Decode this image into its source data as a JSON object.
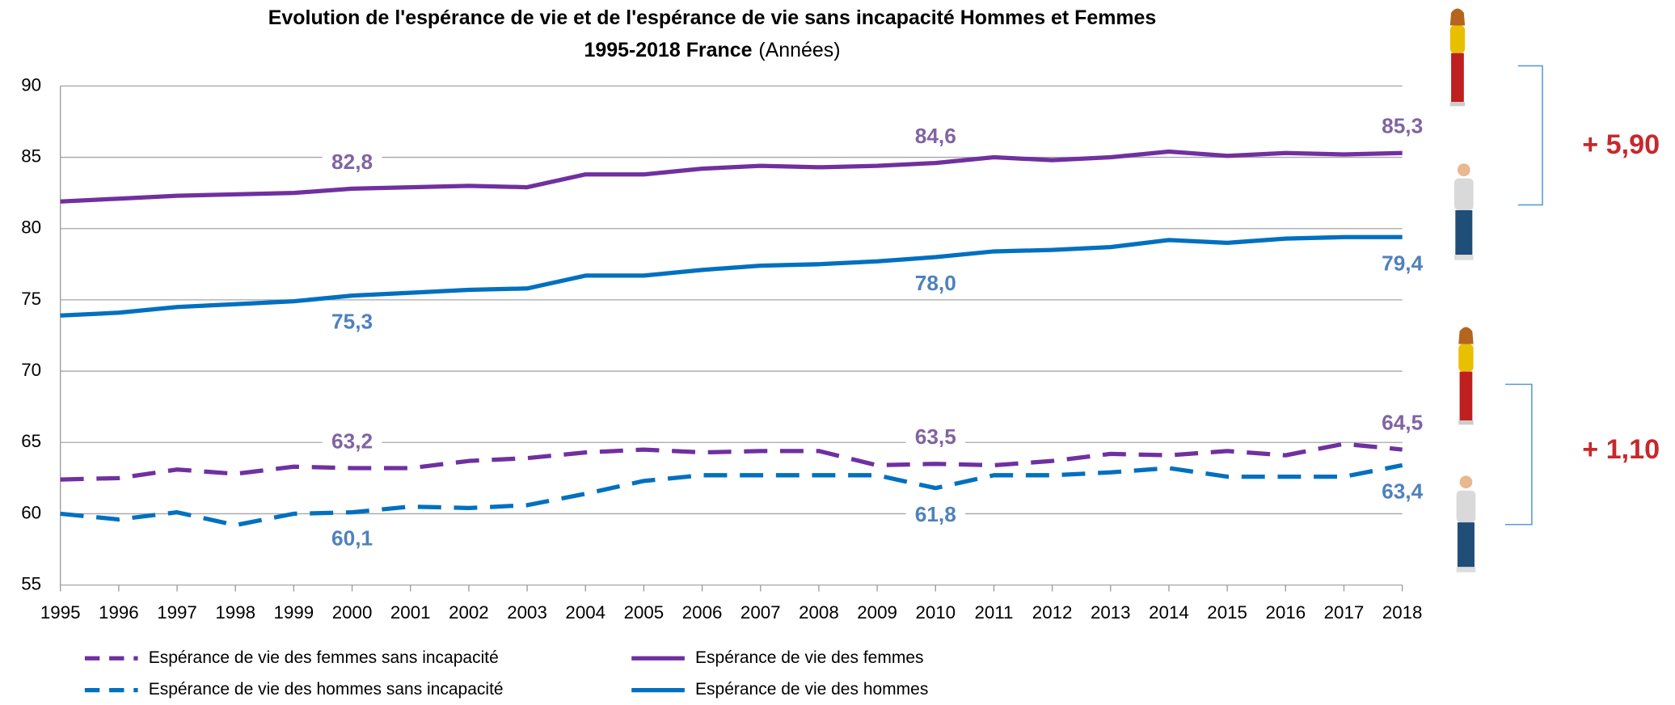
{
  "chart_data": {
    "type": "line",
    "title": "Evolution de l'espérance de vie et de l'espérance de vie sans incapacité Hommes et Femmes",
    "subtitle": "1995-2018 France",
    "unit": "(Années)",
    "categories": [
      "1995",
      "1996",
      "1997",
      "1998",
      "1999",
      "2000",
      "2001",
      "2002",
      "2003",
      "2004",
      "2005",
      "2006",
      "2007",
      "2008",
      "2009",
      "2010",
      "2011",
      "2012",
      "2013",
      "2014",
      "2015",
      "2016",
      "2017",
      "2018"
    ],
    "ylim": [
      55,
      90
    ],
    "yticks": [
      55,
      60,
      65,
      70,
      75,
      80,
      85,
      90
    ],
    "grid": true,
    "series": [
      {
        "name": "Espérance de vie des femmes sans incapacité",
        "color": "#7030a0",
        "dashed": true,
        "values": [
          62.4,
          62.5,
          63.1,
          62.8,
          63.3,
          63.2,
          63.2,
          63.7,
          63.9,
          64.3,
          64.5,
          64.3,
          64.4,
          64.4,
          63.4,
          63.5,
          63.4,
          63.7,
          64.2,
          64.1,
          64.4,
          64.1,
          64.9,
          64.5
        ],
        "value_labels": [
          null,
          null,
          null,
          null,
          null,
          "63,2",
          null,
          null,
          null,
          null,
          null,
          null,
          null,
          null,
          null,
          "63,5",
          null,
          null,
          null,
          null,
          null,
          null,
          null,
          "64,5"
        ]
      },
      {
        "name": "Espérance de vie des femmes",
        "color": "#7030a0",
        "dashed": false,
        "values": [
          81.9,
          82.1,
          82.3,
          82.4,
          82.5,
          82.8,
          82.9,
          83.0,
          82.9,
          83.8,
          83.8,
          84.2,
          84.4,
          84.3,
          84.4,
          84.6,
          85.0,
          84.8,
          85.0,
          85.4,
          85.1,
          85.3,
          85.2,
          85.3
        ],
        "value_labels": [
          null,
          null,
          null,
          null,
          null,
          "82,8",
          null,
          null,
          null,
          null,
          null,
          null,
          null,
          null,
          null,
          "84,6",
          null,
          null,
          null,
          null,
          null,
          null,
          null,
          "85,3"
        ]
      },
      {
        "name": "Espérance de vie des hommes sans incapacité",
        "color": "#0070c0",
        "dashed": true,
        "values": [
          60.0,
          59.6,
          60.1,
          59.2,
          60.0,
          60.1,
          60.5,
          60.4,
          60.6,
          61.4,
          62.3,
          62.7,
          62.7,
          62.7,
          62.7,
          61.8,
          62.7,
          62.7,
          62.9,
          63.2,
          62.6,
          62.6,
          62.6,
          63.4
        ],
        "value_labels": [
          null,
          null,
          null,
          null,
          null,
          "60,1",
          null,
          null,
          null,
          null,
          null,
          null,
          null,
          null,
          null,
          "61,8",
          null,
          null,
          null,
          null,
          null,
          null,
          null,
          "63,4"
        ]
      },
      {
        "name": "Espérance de vie des hommes",
        "color": "#0070c0",
        "dashed": false,
        "values": [
          73.9,
          74.1,
          74.5,
          74.7,
          74.9,
          75.3,
          75.5,
          75.7,
          75.8,
          76.7,
          76.7,
          77.1,
          77.4,
          77.5,
          77.7,
          78.0,
          78.4,
          78.5,
          78.7,
          79.2,
          79.0,
          79.3,
          79.4,
          79.4
        ],
        "value_labels": [
          null,
          null,
          null,
          null,
          null,
          "75,3",
          null,
          null,
          null,
          null,
          null,
          null,
          null,
          null,
          null,
          "78,0",
          null,
          null,
          null,
          null,
          null,
          null,
          null,
          "79,4"
        ]
      }
    ],
    "annotations": [
      "+ 5,90",
      "+ 1,10"
    ]
  }
}
